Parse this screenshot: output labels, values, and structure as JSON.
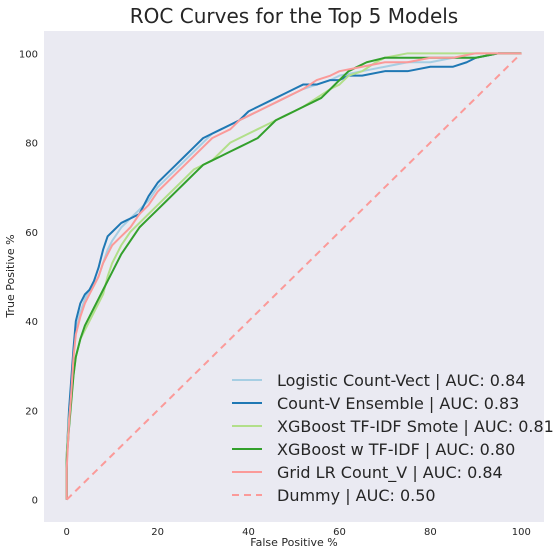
{
  "chart_data": {
    "type": "line",
    "title": "ROC Curves for the Top 5 Models",
    "xlabel": "False Positive %",
    "ylabel": "True Positive %",
    "xlim": [
      -5,
      105
    ],
    "ylim": [
      -5,
      105
    ],
    "xticks": [
      0,
      20,
      40,
      60,
      80,
      100
    ],
    "yticks": [
      0,
      20,
      40,
      60,
      80,
      100
    ],
    "grid": false,
    "background": "#eaeaf2",
    "legend_position": "bottom-right",
    "series": [
      {
        "name": "Logistic Count-Vect | AUC: 0.84",
        "color": "#a6cee3",
        "dash": "solid",
        "points": [
          [
            0,
            0
          ],
          [
            0,
            8
          ],
          [
            0.5,
            18
          ],
          [
            1,
            25
          ],
          [
            1.5,
            33
          ],
          [
            2,
            38
          ],
          [
            3,
            42
          ],
          [
            4,
            45
          ],
          [
            5,
            47
          ],
          [
            6,
            48
          ],
          [
            7,
            50
          ],
          [
            8,
            53
          ],
          [
            9,
            56
          ],
          [
            10,
            58
          ],
          [
            12,
            61
          ],
          [
            14,
            63
          ],
          [
            16,
            65
          ],
          [
            18,
            67
          ],
          [
            20,
            70
          ],
          [
            22,
            72
          ],
          [
            24,
            74
          ],
          [
            26,
            76
          ],
          [
            28,
            78
          ],
          [
            30,
            80
          ],
          [
            32,
            82
          ],
          [
            34,
            83
          ],
          [
            36,
            84
          ],
          [
            38,
            85
          ],
          [
            40,
            86
          ],
          [
            42,
            87
          ],
          [
            44,
            88
          ],
          [
            46,
            89
          ],
          [
            48,
            90
          ],
          [
            50,
            91
          ],
          [
            52,
            92
          ],
          [
            55,
            93
          ],
          [
            58,
            94
          ],
          [
            60,
            95
          ],
          [
            65,
            96
          ],
          [
            70,
            97
          ],
          [
            75,
            98
          ],
          [
            80,
            98
          ],
          [
            85,
            99
          ],
          [
            90,
            99
          ],
          [
            95,
            100
          ],
          [
            100,
            100
          ]
        ]
      },
      {
        "name": "Count-V Ensemble | AUC: 0.83",
        "color": "#1f78b4",
        "dash": "solid",
        "points": [
          [
            0,
            0
          ],
          [
            0,
            10
          ],
          [
            0.5,
            20
          ],
          [
            1,
            27
          ],
          [
            1.5,
            34
          ],
          [
            2,
            40
          ],
          [
            3,
            44
          ],
          [
            4,
            46
          ],
          [
            5,
            47
          ],
          [
            6,
            49
          ],
          [
            7,
            52
          ],
          [
            8,
            56
          ],
          [
            9,
            59
          ],
          [
            10,
            60
          ],
          [
            12,
            62
          ],
          [
            14,
            63
          ],
          [
            16,
            64
          ],
          [
            18,
            68
          ],
          [
            20,
            71
          ],
          [
            22,
            73
          ],
          [
            24,
            75
          ],
          [
            26,
            77
          ],
          [
            28,
            79
          ],
          [
            30,
            81
          ],
          [
            32,
            82
          ],
          [
            34,
            83
          ],
          [
            36,
            84
          ],
          [
            38,
            85
          ],
          [
            40,
            87
          ],
          [
            42,
            88
          ],
          [
            44,
            89
          ],
          [
            46,
            90
          ],
          [
            48,
            91
          ],
          [
            50,
            92
          ],
          [
            52,
            93
          ],
          [
            55,
            93
          ],
          [
            58,
            94
          ],
          [
            60,
            94
          ],
          [
            62,
            95
          ],
          [
            65,
            95
          ],
          [
            70,
            96
          ],
          [
            75,
            96
          ],
          [
            80,
            97
          ],
          [
            85,
            97
          ],
          [
            88,
            98
          ],
          [
            90,
            99
          ],
          [
            95,
            100
          ],
          [
            100,
            100
          ]
        ]
      },
      {
        "name": "XGBoost TF-IDF Smote | AUC: 0.81",
        "color": "#b2df8a",
        "dash": "solid",
        "points": [
          [
            0,
            0
          ],
          [
            0,
            10
          ],
          [
            0.5,
            18
          ],
          [
            1,
            23
          ],
          [
            1.5,
            28
          ],
          [
            2,
            32
          ],
          [
            3,
            36
          ],
          [
            4,
            38
          ],
          [
            5,
            40
          ],
          [
            6,
            42
          ],
          [
            7,
            44
          ],
          [
            8,
            46
          ],
          [
            9,
            50
          ],
          [
            10,
            53
          ],
          [
            12,
            57
          ],
          [
            14,
            60
          ],
          [
            16,
            62
          ],
          [
            18,
            64
          ],
          [
            20,
            66
          ],
          [
            22,
            68
          ],
          [
            24,
            70
          ],
          [
            26,
            72
          ],
          [
            28,
            74
          ],
          [
            30,
            75
          ],
          [
            32,
            76
          ],
          [
            34,
            78
          ],
          [
            36,
            80
          ],
          [
            38,
            81
          ],
          [
            40,
            82
          ],
          [
            42,
            83
          ],
          [
            44,
            84
          ],
          [
            46,
            85
          ],
          [
            48,
            86
          ],
          [
            50,
            87
          ],
          [
            52,
            88
          ],
          [
            55,
            90
          ],
          [
            58,
            92
          ],
          [
            60,
            93
          ],
          [
            62,
            95
          ],
          [
            65,
            96
          ],
          [
            68,
            98
          ],
          [
            70,
            99
          ],
          [
            75,
            100
          ],
          [
            80,
            100
          ],
          [
            90,
            100
          ],
          [
            100,
            100
          ]
        ]
      },
      {
        "name": "XGBoost w TF-IDF | AUC: 0.80",
        "color": "#33a02c",
        "dash": "solid",
        "points": [
          [
            0,
            0
          ],
          [
            0,
            9
          ],
          [
            0.5,
            16
          ],
          [
            1,
            22
          ],
          [
            1.5,
            28
          ],
          [
            2,
            32
          ],
          [
            3,
            36
          ],
          [
            4,
            39
          ],
          [
            5,
            41
          ],
          [
            6,
            43
          ],
          [
            7,
            45
          ],
          [
            8,
            47
          ],
          [
            9,
            49
          ],
          [
            10,
            51
          ],
          [
            12,
            55
          ],
          [
            14,
            58
          ],
          [
            16,
            61
          ],
          [
            18,
            63
          ],
          [
            20,
            65
          ],
          [
            22,
            67
          ],
          [
            24,
            69
          ],
          [
            26,
            71
          ],
          [
            28,
            73
          ],
          [
            30,
            75
          ],
          [
            32,
            76
          ],
          [
            34,
            77
          ],
          [
            36,
            78
          ],
          [
            38,
            79
          ],
          [
            40,
            80
          ],
          [
            42,
            81
          ],
          [
            44,
            83
          ],
          [
            46,
            85
          ],
          [
            48,
            86
          ],
          [
            50,
            87
          ],
          [
            52,
            88
          ],
          [
            54,
            89
          ],
          [
            56,
            90
          ],
          [
            58,
            92
          ],
          [
            60,
            94
          ],
          [
            62,
            96
          ],
          [
            64,
            97
          ],
          [
            66,
            98
          ],
          [
            70,
            99
          ],
          [
            75,
            99
          ],
          [
            80,
            99
          ],
          [
            85,
            99
          ],
          [
            90,
            99
          ],
          [
            95,
            100
          ],
          [
            100,
            100
          ]
        ]
      },
      {
        "name": "Grid LR Count_V | AUC: 0.84",
        "color": "#fb9a99",
        "dash": "solid",
        "points": [
          [
            0,
            0
          ],
          [
            0,
            7
          ],
          [
            0.5,
            17
          ],
          [
            1,
            24
          ],
          [
            1.5,
            32
          ],
          [
            2,
            37
          ],
          [
            3,
            41
          ],
          [
            4,
            44
          ],
          [
            5,
            46
          ],
          [
            6,
            48
          ],
          [
            7,
            50
          ],
          [
            8,
            53
          ],
          [
            9,
            55
          ],
          [
            10,
            57
          ],
          [
            12,
            59
          ],
          [
            14,
            61
          ],
          [
            16,
            64
          ],
          [
            18,
            66
          ],
          [
            20,
            69
          ],
          [
            22,
            71
          ],
          [
            24,
            73
          ],
          [
            26,
            75
          ],
          [
            28,
            77
          ],
          [
            30,
            79
          ],
          [
            32,
            81
          ],
          [
            34,
            82
          ],
          [
            36,
            83
          ],
          [
            38,
            85
          ],
          [
            40,
            86
          ],
          [
            42,
            87
          ],
          [
            44,
            88
          ],
          [
            46,
            89
          ],
          [
            48,
            90
          ],
          [
            50,
            91
          ],
          [
            52,
            92
          ],
          [
            55,
            94
          ],
          [
            58,
            95
          ],
          [
            60,
            96
          ],
          [
            65,
            97
          ],
          [
            70,
            98
          ],
          [
            75,
            98
          ],
          [
            80,
            99
          ],
          [
            85,
            99
          ],
          [
            90,
            100
          ],
          [
            100,
            100
          ]
        ]
      },
      {
        "name": "Dummy | AUC: 0.50",
        "color": "#fb9a99",
        "dash": "dashed",
        "points": [
          [
            0,
            0
          ],
          [
            100,
            100
          ]
        ]
      }
    ]
  }
}
